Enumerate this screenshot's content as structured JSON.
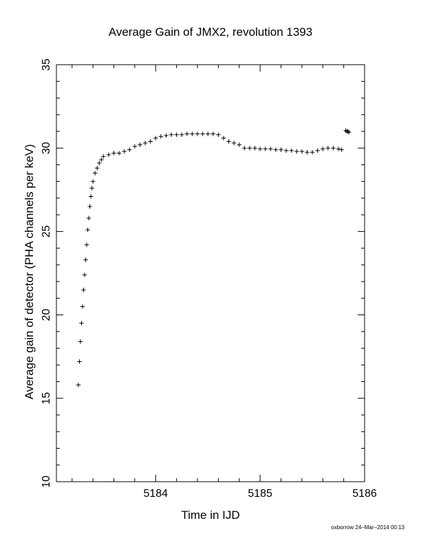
{
  "chart_data": {
    "type": "scatter",
    "title": "Average Gain of JMX2, revolution 1393",
    "xlabel": "Time in IJD",
    "ylabel": "Average gain of detector (PHA channels per keV)",
    "xlim": [
      5183.05,
      5186.0
    ],
    "ylim": [
      10,
      35
    ],
    "xticks": [
      5184,
      5185,
      5186
    ],
    "yticks": [
      10,
      15,
      20,
      25,
      30,
      35
    ],
    "grid": false,
    "legend": "none",
    "marker": "+",
    "color": "#000000",
    "series": [
      {
        "x": [
          5183.26,
          5183.27,
          5183.28,
          5183.29,
          5183.3,
          5183.31,
          5183.32,
          5183.33,
          5183.34,
          5183.35,
          5183.36,
          5183.37,
          5183.38,
          5183.39,
          5183.4,
          5183.42,
          5183.44,
          5183.46,
          5183.48,
          5183.5,
          5183.55,
          5183.6,
          5183.65,
          5183.7,
          5183.75,
          5183.8,
          5183.85,
          5183.9,
          5183.95,
          5184.0,
          5184.05,
          5184.1,
          5184.15,
          5184.2,
          5184.25,
          5184.3,
          5184.35,
          5184.4,
          5184.45,
          5184.5,
          5184.55,
          5184.6,
          5184.65,
          5184.7,
          5184.75,
          5184.8,
          5184.85,
          5184.9,
          5184.95,
          5185.0,
          5185.05,
          5185.1,
          5185.15,
          5185.2,
          5185.25,
          5185.3,
          5185.35,
          5185.4,
          5185.45,
          5185.5,
          5185.55,
          5185.6,
          5185.65,
          5185.7,
          5185.75,
          5185.78,
          5185.82,
          5185.83,
          5185.84,
          5185.85
        ],
        "y": [
          15.8,
          17.2,
          18.4,
          19.5,
          20.5,
          21.5,
          22.4,
          23.3,
          24.2,
          25.1,
          25.8,
          26.5,
          27.1,
          27.6,
          28.0,
          28.5,
          28.8,
          29.1,
          29.3,
          29.5,
          29.6,
          29.7,
          29.7,
          29.8,
          29.9,
          30.1,
          30.2,
          30.3,
          30.4,
          30.6,
          30.7,
          30.75,
          30.8,
          30.8,
          30.8,
          30.85,
          30.85,
          30.85,
          30.85,
          30.85,
          30.85,
          30.8,
          30.6,
          30.4,
          30.3,
          30.2,
          30.0,
          30.0,
          30.0,
          29.95,
          29.95,
          29.95,
          29.9,
          29.9,
          29.85,
          29.85,
          29.8,
          29.8,
          29.75,
          29.75,
          29.85,
          29.95,
          30.0,
          30.0,
          29.95,
          29.9,
          31.05,
          31.0,
          31.0,
          30.95
        ]
      }
    ]
  },
  "footer": "oxborrow 24–Mar–2014 00:13"
}
